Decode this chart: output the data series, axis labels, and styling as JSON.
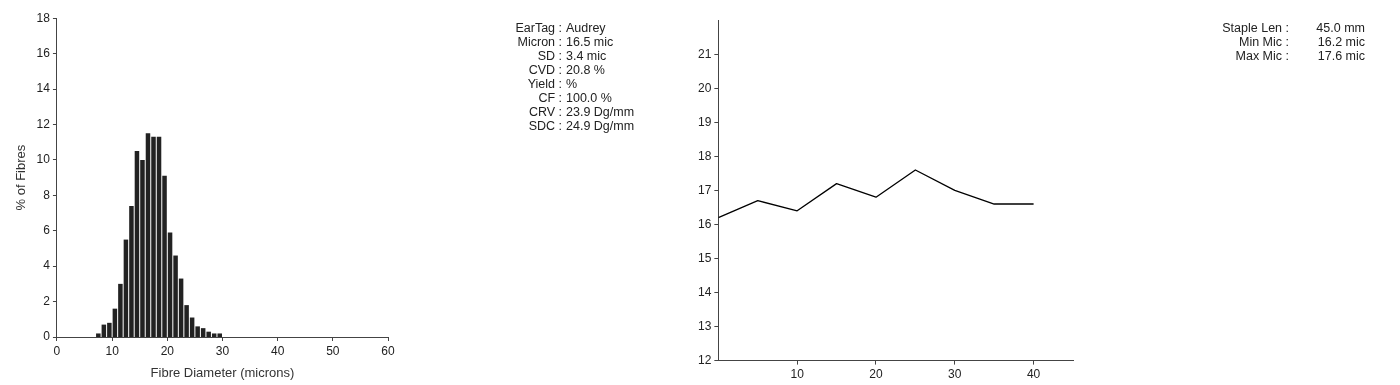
{
  "chart_data": [
    {
      "type": "histogram",
      "xlabel": "Fibre Diameter (microns)",
      "ylabel": "% of Fibres",
      "color": "#222222",
      "bins": [
        7,
        8,
        9,
        10,
        11,
        12,
        13,
        14,
        15,
        16,
        17,
        18,
        19,
        20,
        21,
        22,
        23,
        24,
        25,
        26,
        27,
        28,
        29,
        30
      ],
      "values": [
        0.2,
        0.7,
        0.8,
        1.6,
        3.0,
        5.5,
        7.4,
        10.5,
        10.0,
        11.5,
        11.3,
        11.3,
        9.1,
        5.9,
        4.6,
        3.3,
        1.8,
        1.1,
        0.6,
        0.5,
        0.3,
        0.2,
        0.2
      ],
      "xlim": [
        0,
        60
      ],
      "xticks": [
        0,
        10,
        20,
        30,
        40,
        50,
        60
      ],
      "ylim": [
        0,
        18
      ],
      "yticks": [
        0,
        2,
        4,
        6,
        8,
        10,
        12,
        14,
        16,
        18
      ],
      "grid": false,
      "legend": false
    },
    {
      "type": "other",
      "annotations": [
        "EarTag : Audrey",
        "Micron : 16.5 mic",
        "SD : 3.4 mic",
        "CVD : 20.8 %",
        "Yield : %",
        "CF : 100.0 %",
        "CRV : 23.9 Dg/mm",
        "SDC : 24.9 Dg/mm"
      ]
    },
    {
      "type": "line",
      "x": [
        0,
        5,
        10,
        15,
        20,
        25,
        30,
        35,
        40
      ],
      "series": [
        {
          "color": "#000000",
          "values": [
            16.2,
            16.7,
            16.4,
            17.2,
            16.8,
            17.6,
            17.0,
            16.6,
            16.6
          ]
        }
      ],
      "xlim": [
        0,
        45
      ],
      "xticks": [
        10,
        20,
        30,
        40
      ],
      "ylim": [
        12,
        22
      ],
      "yticks": [
        12,
        13,
        14,
        15,
        16,
        17,
        18,
        19,
        20,
        21
      ],
      "grid": false,
      "legend": false,
      "marker": "none"
    },
    {
      "type": "other",
      "annotations": [
        "Staple Len : 45.0 mm",
        "Min Mic : 16.2 mic",
        "Max Mic : 17.6 mic"
      ]
    }
  ]
}
